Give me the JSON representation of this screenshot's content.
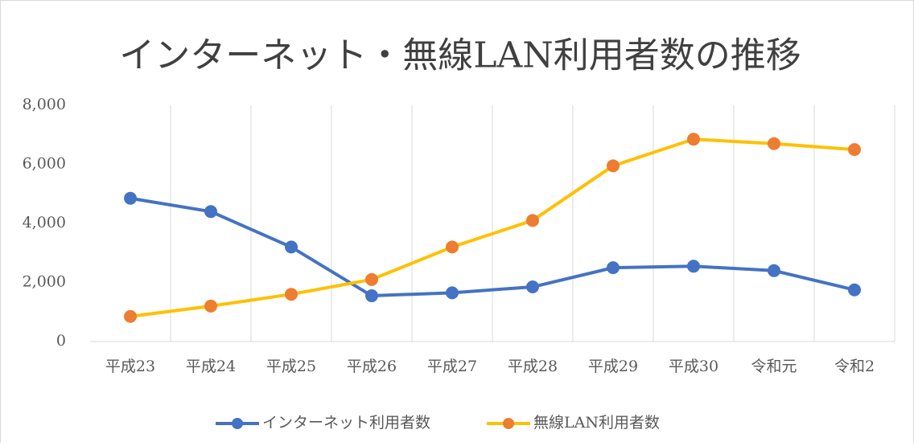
{
  "chart_data": {
    "type": "line",
    "title": "インターネット・無線LAN利用者数の推移",
    "categories": [
      "平成23",
      "平成24",
      "平成25",
      "平成26",
      "平成27",
      "平成28",
      "平成29",
      "平成30",
      "令和元",
      "令和2"
    ],
    "series": [
      {
        "name": "インターネット利用者数",
        "color": "#4472c4",
        "marker_color": "#4472c4",
        "values": [
          4850,
          4400,
          3200,
          1550,
          1650,
          1850,
          2500,
          2550,
          2400,
          1750
        ]
      },
      {
        "name": "無線LAN利用者数",
        "color": "#ffc000",
        "marker_color": "#ed7d31",
        "values": [
          850,
          1200,
          1600,
          2100,
          3200,
          4100,
          5950,
          6850,
          6700,
          6500
        ]
      }
    ],
    "ylim": [
      0,
      8000
    ],
    "yticks": [
      0,
      {
        "value": 2000,
        "label": "2,000"
      },
      {
        "value": 4000,
        "label": "4,000"
      },
      {
        "value": 6000,
        "label": "6,000"
      },
      {
        "value": 8000,
        "label": "8,000"
      }
    ],
    "grid": true,
    "legend": "bottom"
  }
}
